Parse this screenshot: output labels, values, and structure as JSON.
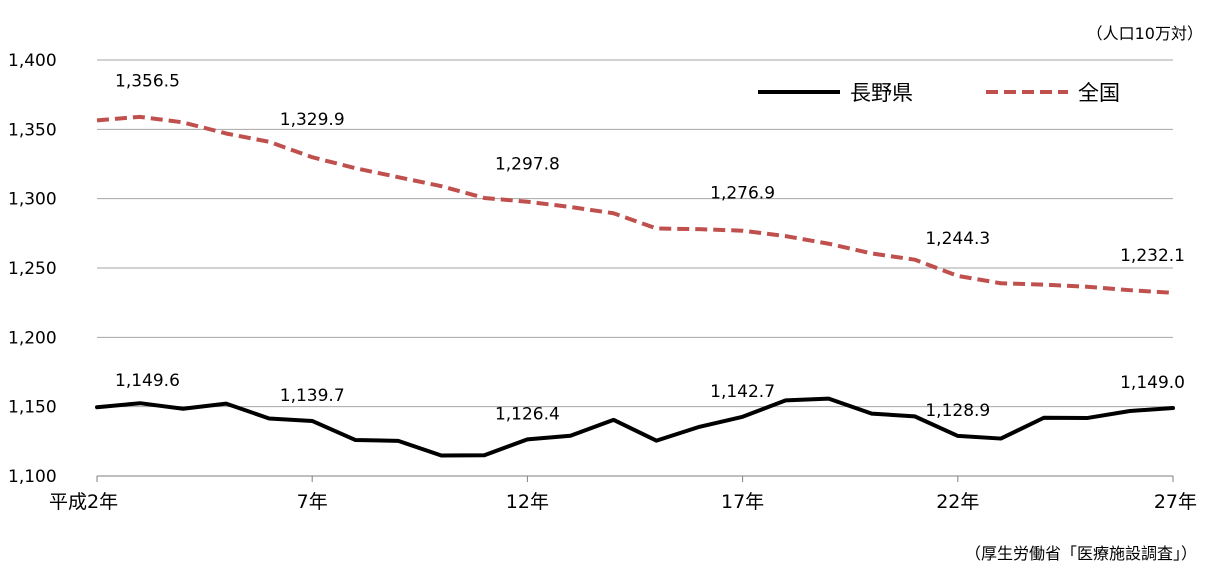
{
  "unit_note": "（人口10万対）",
  "source_note": "（厚生労働省「医療施設調査」）",
  "colors": {
    "nagano": "#000000",
    "national": "#c0504d",
    "grid": "#a6a6a6",
    "axis": "#7f7f7f"
  },
  "chart_data": {
    "type": "line",
    "title": "",
    "xlabel": "",
    "ylabel": "",
    "x": [
      2,
      3,
      4,
      5,
      6,
      7,
      8,
      9,
      10,
      11,
      12,
      13,
      14,
      15,
      16,
      17,
      18,
      19,
      20,
      21,
      22,
      23,
      24,
      25,
      26,
      27
    ],
    "x_tick_values": [
      2,
      7,
      12,
      17,
      22,
      27
    ],
    "x_tick_labels": [
      "平成2年",
      "7年",
      "12年",
      "17年",
      "22年",
      "27年"
    ],
    "ylim": [
      1100,
      1400
    ],
    "y_ticks": [
      1100,
      1150,
      1200,
      1250,
      1300,
      1350,
      1400
    ],
    "y_tick_labels": [
      "1,100",
      "1,150",
      "1,200",
      "1,250",
      "1,300",
      "1,350",
      "1,400"
    ],
    "grid": true,
    "legend_position": "top-right",
    "series": [
      {
        "name": "長野県",
        "style": "solid",
        "color": "#000000",
        "values": [
          1149.6,
          1152.5,
          1148.5,
          1152.2,
          1141.5,
          1139.7,
          1126.0,
          1125.3,
          1114.8,
          1115.0,
          1126.4,
          1129.0,
          1140.5,
          1125.5,
          1135.5,
          1142.7,
          1154.5,
          1155.8,
          1145.0,
          1143.0,
          1128.9,
          1127.0,
          1142.0,
          1141.8,
          1146.9,
          1149.0
        ],
        "labels": [
          {
            "x": 2,
            "text": "1,149.6"
          },
          {
            "x": 7,
            "text": "1,139.7"
          },
          {
            "x": 12,
            "text": "1,126.4"
          },
          {
            "x": 17,
            "text": "1,142.7"
          },
          {
            "x": 22,
            "text": "1,128.9"
          },
          {
            "x": 27,
            "text": "1,149.0"
          }
        ]
      },
      {
        "name": "全国",
        "style": "dashed",
        "color": "#c0504d",
        "values": [
          1356.5,
          1359.0,
          1355.0,
          1347.0,
          1341.0,
          1329.9,
          1322.0,
          1315.5,
          1309.0,
          1300.5,
          1297.8,
          1294.0,
          1289.5,
          1278.5,
          1278.0,
          1276.9,
          1273.0,
          1267.5,
          1260.5,
          1256.0,
          1244.3,
          1239.0,
          1238.0,
          1236.5,
          1234.0,
          1232.1
        ],
        "labels": [
          {
            "x": 2,
            "text": "1,356.5"
          },
          {
            "x": 7,
            "text": "1,329.9"
          },
          {
            "x": 12,
            "text": "1,297.8"
          },
          {
            "x": 17,
            "text": "1,276.9"
          },
          {
            "x": 22,
            "text": "1,244.3"
          },
          {
            "x": 27,
            "text": "1,232.1"
          }
        ]
      }
    ]
  }
}
